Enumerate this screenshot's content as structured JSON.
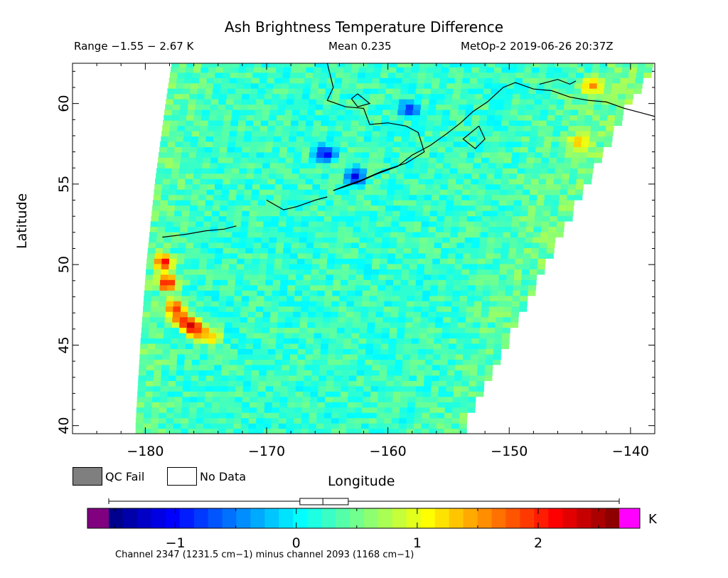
{
  "header": {
    "title": "Ash Brightness Temperature Difference",
    "range_text": "Range −1.55 − 2.67 K",
    "mean_text": "Mean 0.235",
    "satellite_text": "MetOp-2 2019-06-26 20:37Z"
  },
  "legend": {
    "qc_fail_label": "QC Fail",
    "no_data_label": "No Data",
    "qc_fail_color": "#7f7f7f",
    "no_data_color": "#ffffff"
  },
  "colorbar": {
    "unit": "K",
    "min": -1.55,
    "max": 2.67,
    "ticks": [
      -1,
      0,
      1,
      2
    ],
    "tick_labels": [
      "−1",
      "0",
      "1",
      "2"
    ],
    "below_color": "#800080",
    "above_color": "#ff00ff",
    "box_plot": {
      "whisker_low": -1.55,
      "q1": 0.03,
      "median": 0.22,
      "q3": 0.43,
      "whisker_high": 2.67
    }
  },
  "footnote": "Channel 2347 (1231.5 cm−1) minus channel 2093 (1168 cm−1)",
  "chart_data": {
    "type": "heatmap",
    "title": "Ash Brightness Temperature Difference",
    "xlabel": "Longitude",
    "ylabel": "Latitude",
    "xlim": [
      -186,
      -138
    ],
    "ylim": [
      39.5,
      62.5
    ],
    "x_ticks": [
      -180,
      -170,
      -160,
      -150,
      -140
    ],
    "y_ticks": [
      40,
      45,
      50,
      55,
      60
    ],
    "x_tick_labels": [
      "−180",
      "−170",
      "−160",
      "−150",
      "−140"
    ],
    "y_tick_labels": [
      "40",
      "45",
      "50",
      "55",
      "60"
    ],
    "value_range": [
      -1.55,
      2.67
    ],
    "mean": 0.235,
    "units": "K",
    "swath_edges_lon": {
      "lat": [
        40,
        45,
        50,
        55,
        60,
        62.5
      ],
      "west": [
        -180.8,
        -180.4,
        -179.9,
        -179.2,
        -178.3,
        -177.8
      ],
      "east": [
        -154,
        -150.5,
        -147.2,
        -143.8,
        -140.3,
        -138
      ]
    },
    "features": [
      {
        "lat": 50,
        "lon": -178.8,
        "value": 2.4
      },
      {
        "lat": 48.7,
        "lon": -178.5,
        "value": 2.5
      },
      {
        "lat": 47.2,
        "lon": -177.9,
        "value": 2.2
      },
      {
        "lat": 46.5,
        "lon": -177.4,
        "value": 2.1
      },
      {
        "lat": 46.0,
        "lon": -176.5,
        "value": 2.67
      },
      {
        "lat": 45.7,
        "lon": -175.8,
        "value": 2.0
      },
      {
        "lat": 45.3,
        "lon": -174.8,
        "value": 1.4
      },
      {
        "lat": 56.7,
        "lon": -165.5,
        "value": -1.3
      },
      {
        "lat": 55.3,
        "lon": -163.0,
        "value": -1.2
      },
      {
        "lat": 59.5,
        "lon": -158.5,
        "value": -1.0
      },
      {
        "lat": 61.0,
        "lon": -143.5,
        "value": 1.7
      },
      {
        "lat": 57.5,
        "lon": -144.5,
        "value": 1.5
      }
    ]
  }
}
